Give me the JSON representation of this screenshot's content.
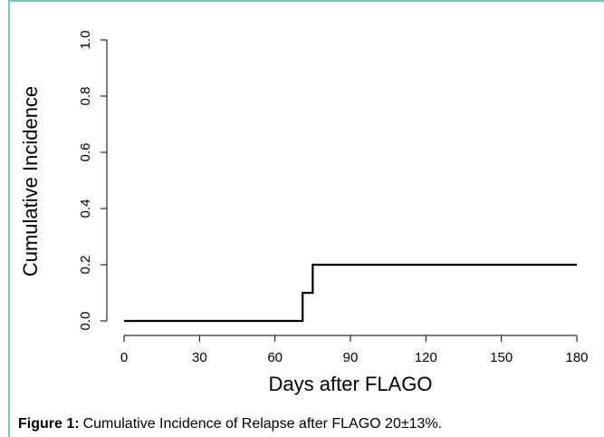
{
  "chart_data": {
    "type": "line",
    "x": [
      0,
      71,
      71,
      75,
      75,
      180
    ],
    "series": [
      {
        "color": "#000000",
        "values": [
          0,
          0,
          0.1,
          0.1,
          0.2,
          0.2
        ]
      }
    ],
    "xlim": [
      0,
      180
    ],
    "xticks": [
      0,
      30,
      60,
      90,
      120,
      150,
      180
    ],
    "ylim": [
      0,
      1
    ],
    "yticks": [
      {
        "value": 0,
        "label": "0.0"
      },
      {
        "value": 0.2,
        "label": "0.2"
      },
      {
        "value": 0.4,
        "label": "0.4"
      },
      {
        "value": 0.6,
        "label": "0.6"
      },
      {
        "value": 0.8,
        "label": "0.8"
      },
      {
        "value": 1,
        "label": "1.0"
      }
    ],
    "xlabel": "Days after FLAGO",
    "ylabel": "Cumulative Incidence",
    "grid": false
  },
  "caption": {
    "label": "Figure 1:",
    "text": "Cumulative Incidence of Relapse after FLAGO 20±13%."
  }
}
